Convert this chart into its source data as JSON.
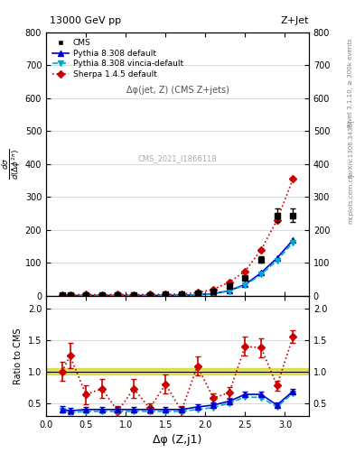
{
  "title_left": "13000 GeV pp",
  "title_right": "Z+Jet",
  "ylabel_ratio": "Ratio to CMS",
  "xlabel": "Δφ (Z,j1)",
  "annotation": "Δφ(jet, Z) (CMS Z+jets)",
  "watermark": "CMS_2021_I1866118",
  "right_label": "Rivet 3.1.10, ≥ 300k events",
  "arxiv_label": "[arXiv:1306.3436]",
  "mcplots_label": "mcplots.cern.ch",
  "cms_x": [
    0.2,
    0.3,
    0.5,
    0.7,
    0.9,
    1.1,
    1.3,
    1.5,
    1.7,
    1.9,
    2.1,
    2.3,
    2.5,
    2.7,
    2.9,
    3.1
  ],
  "cms_y": [
    3.5,
    3.2,
    3.5,
    3.8,
    4.0,
    3.8,
    4.0,
    4.5,
    5.5,
    8.0,
    15.0,
    30.0,
    55.0,
    110.0,
    245.0,
    245.0
  ],
  "cms_yerr": [
    0.3,
    0.3,
    0.3,
    0.3,
    0.3,
    0.3,
    0.3,
    0.3,
    0.5,
    0.8,
    1.5,
    3.0,
    5.0,
    10.0,
    20.0,
    20.0
  ],
  "pythia_x": [
    0.2,
    0.3,
    0.5,
    0.7,
    0.9,
    1.1,
    1.3,
    1.5,
    1.7,
    1.9,
    2.1,
    2.3,
    2.5,
    2.7,
    2.9,
    3.1
  ],
  "pythia_y": [
    1.4,
    1.2,
    1.4,
    1.5,
    1.6,
    1.5,
    1.6,
    1.8,
    2.2,
    3.5,
    7.0,
    16.0,
    35.0,
    70.0,
    115.0,
    170.0
  ],
  "vincia_x": [
    0.2,
    0.3,
    0.5,
    0.7,
    0.9,
    1.1,
    1.3,
    1.5,
    1.7,
    1.9,
    2.1,
    2.3,
    2.5,
    2.7,
    2.9,
    3.1
  ],
  "vincia_y": [
    1.3,
    1.1,
    1.3,
    1.4,
    1.5,
    1.4,
    1.5,
    1.7,
    2.0,
    3.2,
    6.5,
    15.0,
    33.0,
    65.0,
    108.0,
    162.0
  ],
  "sherpa_x": [
    0.2,
    0.3,
    0.5,
    0.7,
    0.9,
    1.1,
    1.3,
    1.5,
    1.7,
    1.9,
    2.1,
    2.3,
    2.5,
    2.7,
    2.9,
    3.1
  ],
  "sherpa_y": [
    3.5,
    4.0,
    4.2,
    4.0,
    4.5,
    4.0,
    4.8,
    5.0,
    6.0,
    10.0,
    20.0,
    42.0,
    75.0,
    140.0,
    230.0,
    355.0
  ],
  "ratio_pythia_x": [
    0.2,
    0.3,
    0.5,
    0.7,
    0.9,
    1.1,
    1.3,
    1.5,
    1.7,
    1.9,
    2.1,
    2.3,
    2.5,
    2.7,
    2.9,
    3.1
  ],
  "ratio_pythia_y": [
    0.4,
    0.38,
    0.4,
    0.4,
    0.4,
    0.4,
    0.4,
    0.4,
    0.4,
    0.44,
    0.47,
    0.53,
    0.64,
    0.64,
    0.47,
    0.69
  ],
  "ratio_pythia_err": [
    0.05,
    0.05,
    0.04,
    0.04,
    0.04,
    0.04,
    0.04,
    0.04,
    0.04,
    0.04,
    0.04,
    0.04,
    0.04,
    0.04,
    0.04,
    0.04
  ],
  "ratio_vincia_x": [
    0.2,
    0.3,
    0.5,
    0.7,
    0.9,
    1.1,
    1.3,
    1.5,
    1.7,
    1.9,
    2.1,
    2.3,
    2.5,
    2.7,
    2.9,
    3.1
  ],
  "ratio_vincia_y": [
    0.38,
    0.35,
    0.37,
    0.37,
    0.37,
    0.37,
    0.37,
    0.37,
    0.37,
    0.4,
    0.43,
    0.5,
    0.6,
    0.59,
    0.44,
    0.66
  ],
  "ratio_sherpa_x": [
    0.2,
    0.3,
    0.5,
    0.7,
    0.9,
    1.1,
    1.3,
    1.5,
    1.7,
    1.9,
    2.1,
    2.3,
    2.5,
    2.7,
    2.9,
    3.1
  ],
  "ratio_sherpa_y": [
    1.0,
    1.25,
    0.64,
    0.73,
    0.37,
    0.73,
    0.42,
    0.8,
    0.38,
    1.09,
    0.58,
    0.67,
    1.4,
    1.38,
    0.78,
    1.55
  ],
  "ratio_sherpa_err": [
    0.15,
    0.2,
    0.15,
    0.15,
    0.08,
    0.15,
    0.08,
    0.15,
    0.08,
    0.15,
    0.08,
    0.08,
    0.15,
    0.15,
    0.08,
    0.1
  ],
  "xlim": [
    0.0,
    3.3
  ],
  "ylim_main": [
    0,
    800
  ],
  "ylim_ratio": [
    0.3,
    2.2
  ],
  "yticks_main": [
    0,
    100,
    200,
    300,
    400,
    500,
    600,
    700,
    800
  ],
  "yticks_ratio": [
    0.5,
    1.0,
    1.5,
    2.0
  ],
  "color_cms": "#000000",
  "color_pythia": "#0000cc",
  "color_vincia": "#00aacc",
  "color_sherpa": "#cc0000",
  "color_cms_band": "#cccc00"
}
